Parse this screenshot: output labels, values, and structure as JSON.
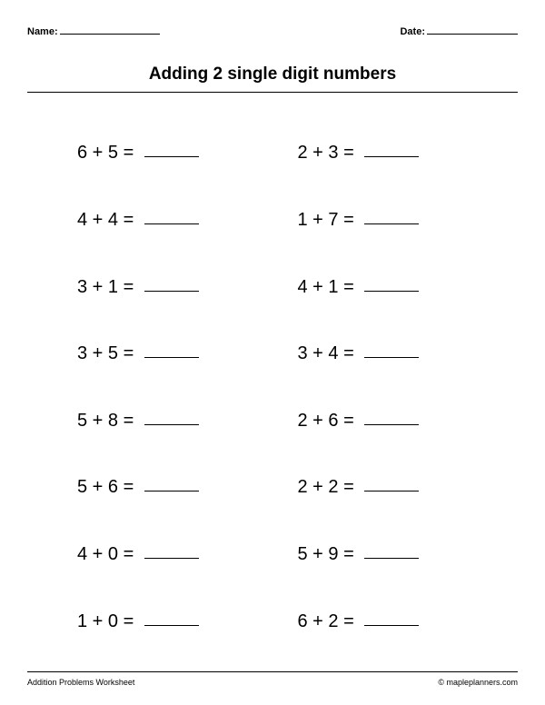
{
  "header": {
    "name_label": "Name:",
    "date_label": "Date:"
  },
  "title": "Adding 2 single digit numbers",
  "problems": {
    "layout": "2-column",
    "font_size": 20,
    "text_color": "#000000",
    "background_color": "#ffffff",
    "blank_width": 60,
    "column1": [
      {
        "a": 6,
        "b": 5
      },
      {
        "a": 4,
        "b": 4
      },
      {
        "a": 3,
        "b": 1
      },
      {
        "a": 3,
        "b": 5
      },
      {
        "a": 5,
        "b": 8
      },
      {
        "a": 5,
        "b": 6
      },
      {
        "a": 4,
        "b": 0
      },
      {
        "a": 1,
        "b": 0
      }
    ],
    "column2": [
      {
        "a": 2,
        "b": 3
      },
      {
        "a": 1,
        "b": 7
      },
      {
        "a": 4,
        "b": 1
      },
      {
        "a": 3,
        "b": 4
      },
      {
        "a": 2,
        "b": 6
      },
      {
        "a": 2,
        "b": 2
      },
      {
        "a": 5,
        "b": 9
      },
      {
        "a": 6,
        "b": 2
      }
    ]
  },
  "footer": {
    "left": "Addition Problems Worksheet",
    "right": "© mapleplanners.com"
  }
}
